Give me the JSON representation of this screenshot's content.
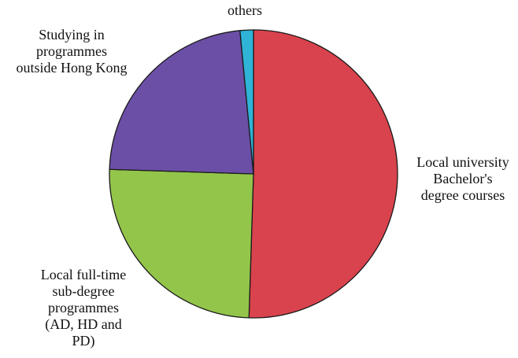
{
  "chart_data": {
    "type": "pie",
    "title": "",
    "slices": [
      {
        "label": "Local university Bachelor's degree courses",
        "label_lines": [
          "Local university",
          "Bachelor's",
          "degree courses"
        ],
        "value": 50.5,
        "color": "#d9434d"
      },
      {
        "label": "Local full-time sub-degree programmes (AD, HD and PD)",
        "label_lines": [
          "Local full-time",
          "sub-degree",
          "programmes",
          "(AD, HD and",
          "PD)"
        ],
        "value": 25,
        "color": "#93c54b"
      },
      {
        "label": "Studying in programmes outside Hong Kong",
        "label_lines": [
          "Studying in",
          "programmes",
          "outside Hong Kong"
        ],
        "value": 23,
        "color": "#6b4fa6"
      },
      {
        "label": "others",
        "label_lines": [
          "others"
        ],
        "value": 1.5,
        "color": "#2fb3d6"
      }
    ],
    "start_angle_deg": 0,
    "direction": "clockwise",
    "legend": "none",
    "grid": false
  }
}
